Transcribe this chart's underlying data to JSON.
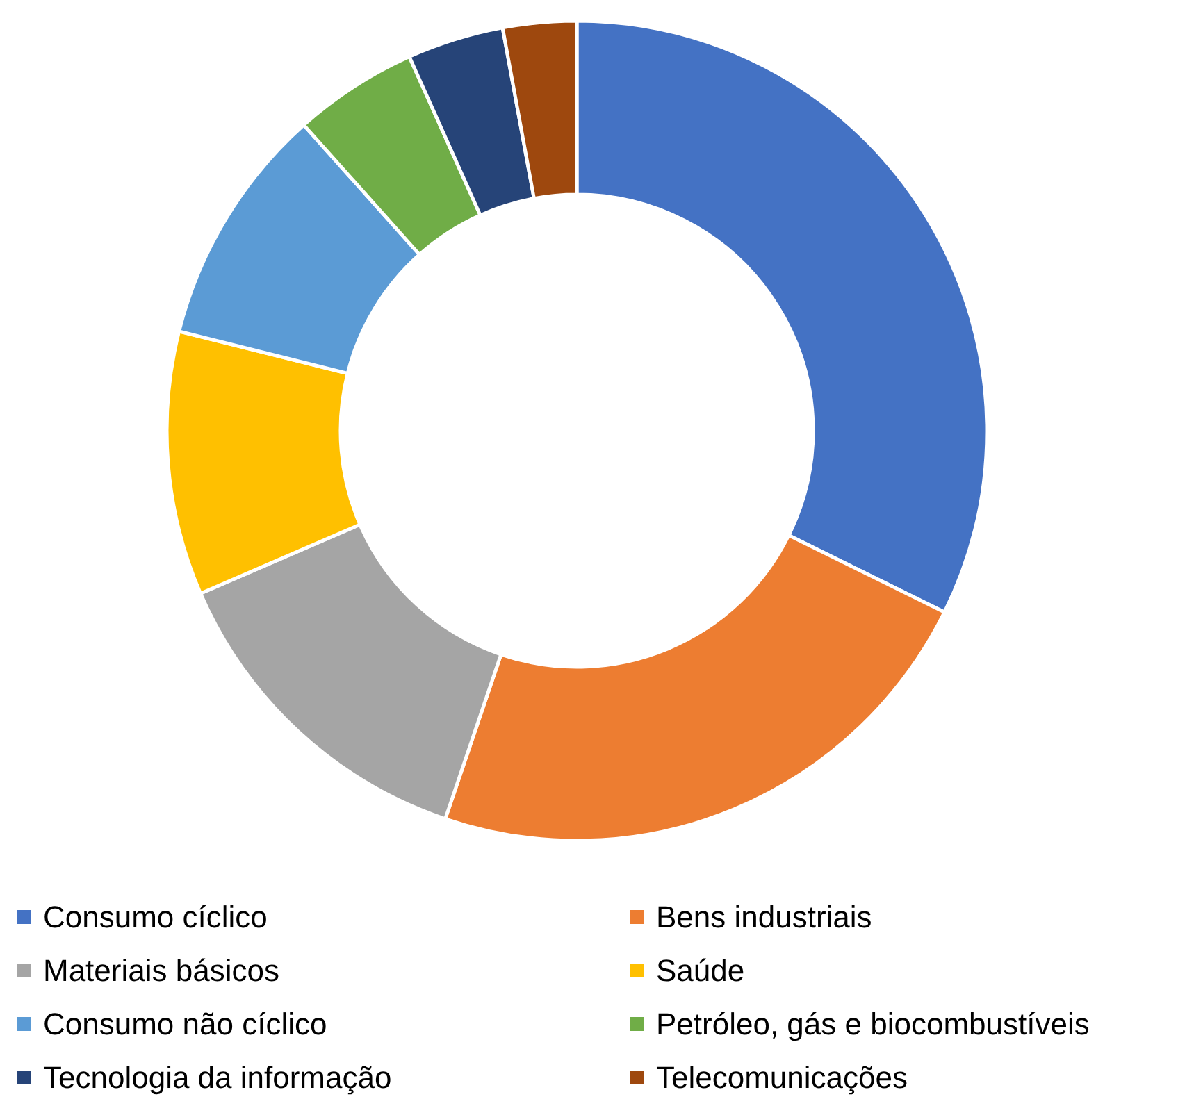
{
  "chart_data": {
    "type": "donut",
    "categories": [
      "Consumo cíclico",
      "Bens industriais",
      "Materiais básicos",
      "Saúde",
      "Consumo não cíclico",
      "Petróleo, gás e biocombustíveis",
      "Tecnologia da informação",
      "Telecomunicações"
    ],
    "values": [
      32.3,
      22.9,
      13.3,
      10.4,
      9.5,
      4.9,
      3.8,
      2.9
    ],
    "colors": [
      "#4472c4",
      "#ed7d31",
      "#a5a5a5",
      "#ffc000",
      "#5b9bd5",
      "#70ad47",
      "#264478",
      "#9e480e"
    ],
    "legend": "bottom"
  }
}
